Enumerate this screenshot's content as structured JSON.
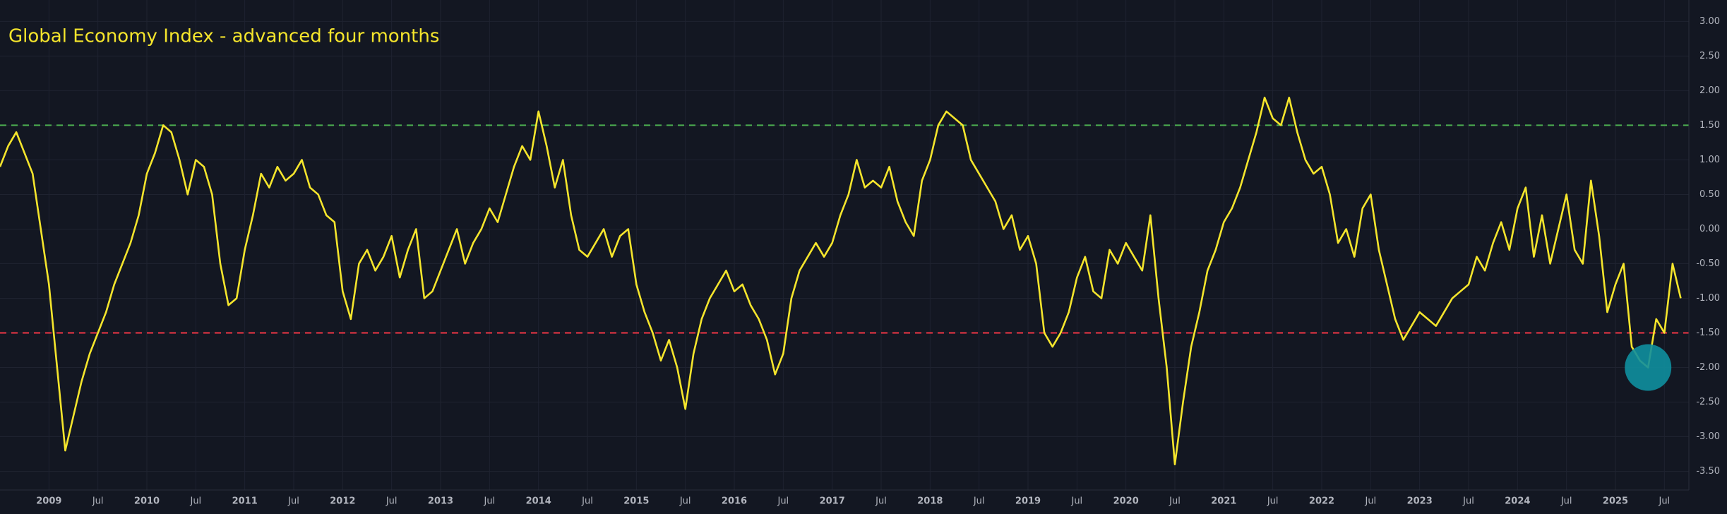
{
  "chart_data": {
    "type": "line",
    "title": "Global Economy Index - advanced four months",
    "color": "#f5e52c",
    "x": [
      "2008-07",
      "2008-08",
      "2008-09",
      "2008-10",
      "2008-11",
      "2008-12",
      "2009-01",
      "2009-02",
      "2009-03",
      "2009-04",
      "2009-05",
      "2009-06",
      "2009-07",
      "2009-08",
      "2009-09",
      "2009-10",
      "2009-11",
      "2009-12",
      "2010-01",
      "2010-02",
      "2010-03",
      "2010-04",
      "2010-05",
      "2010-06",
      "2010-07",
      "2010-08",
      "2010-09",
      "2010-10",
      "2010-11",
      "2010-12",
      "2011-01",
      "2011-02",
      "2011-03",
      "2011-04",
      "2011-05",
      "2011-06",
      "2011-07",
      "2011-08",
      "2011-09",
      "2011-10",
      "2011-11",
      "2011-12",
      "2012-01",
      "2012-02",
      "2012-03",
      "2012-04",
      "2012-05",
      "2012-06",
      "2012-07",
      "2012-08",
      "2012-09",
      "2012-10",
      "2012-11",
      "2012-12",
      "2013-01",
      "2013-02",
      "2013-03",
      "2013-04",
      "2013-05",
      "2013-06",
      "2013-07",
      "2013-08",
      "2013-09",
      "2013-10",
      "2013-11",
      "2013-12",
      "2014-01",
      "2014-02",
      "2014-03",
      "2014-04",
      "2014-05",
      "2014-06",
      "2014-07",
      "2014-08",
      "2014-09",
      "2014-10",
      "2014-11",
      "2014-12",
      "2015-01",
      "2015-02",
      "2015-03",
      "2015-04",
      "2015-05",
      "2015-06",
      "2015-07",
      "2015-08",
      "2015-09",
      "2015-10",
      "2015-11",
      "2015-12",
      "2016-01",
      "2016-02",
      "2016-03",
      "2016-04",
      "2016-05",
      "2016-06",
      "2016-07",
      "2016-08",
      "2016-09",
      "2016-10",
      "2016-11",
      "2016-12",
      "2017-01",
      "2017-02",
      "2017-03",
      "2017-04",
      "2017-05",
      "2017-06",
      "2017-07",
      "2017-08",
      "2017-09",
      "2017-10",
      "2017-11",
      "2017-12",
      "2018-01",
      "2018-02",
      "2018-03",
      "2018-04",
      "2018-05",
      "2018-06",
      "2018-07",
      "2018-08",
      "2018-09",
      "2018-10",
      "2018-11",
      "2018-12",
      "2019-01",
      "2019-02",
      "2019-03",
      "2019-04",
      "2019-05",
      "2019-06",
      "2019-07",
      "2019-08",
      "2019-09",
      "2019-10",
      "2019-11",
      "2019-12",
      "2020-01",
      "2020-02",
      "2020-03",
      "2020-04",
      "2020-05",
      "2020-06",
      "2020-07",
      "2020-08",
      "2020-09",
      "2020-10",
      "2020-11",
      "2020-12",
      "2021-01",
      "2021-02",
      "2021-03",
      "2021-04",
      "2021-05",
      "2021-06",
      "2021-07",
      "2021-08",
      "2021-09",
      "2021-10",
      "2021-11",
      "2021-12",
      "2022-01",
      "2022-02",
      "2022-03",
      "2022-04",
      "2022-05",
      "2022-06",
      "2022-07",
      "2022-08",
      "2022-09",
      "2022-10",
      "2022-11",
      "2022-12",
      "2023-01",
      "2023-02",
      "2023-03",
      "2023-04",
      "2023-05",
      "2023-06",
      "2023-07",
      "2023-08",
      "2023-09",
      "2023-10",
      "2023-11",
      "2023-12",
      "2024-01",
      "2024-02",
      "2024-03",
      "2024-04",
      "2024-05",
      "2024-06",
      "2024-07",
      "2024-08",
      "2024-09",
      "2024-10",
      "2024-11",
      "2024-12",
      "2025-01",
      "2025-02",
      "2025-03",
      "2025-04",
      "2025-05",
      "2025-06",
      "2025-07",
      "2025-08",
      "2025-09"
    ],
    "values": [
      0.9,
      1.2,
      1.4,
      1.1,
      0.8,
      0,
      -0.8,
      -2.0,
      -3.2,
      -2.7,
      -2.2,
      -1.8,
      -1.5,
      -1.2,
      -0.8,
      -0.5,
      -0.2,
      0.2,
      0.8,
      1.1,
      1.5,
      1.4,
      1.0,
      0.5,
      1.0,
      0.9,
      0.5,
      -0.5,
      -1.1,
      -1.0,
      -0.3,
      0.2,
      0.8,
      0.6,
      0.9,
      0.7,
      0.8,
      1.0,
      0.6,
      0.5,
      0.2,
      0.1,
      -0.9,
      -1.3,
      -0.5,
      -0.3,
      -0.6,
      -0.4,
      -0.1,
      -0.7,
      -0.3,
      0,
      -1.0,
      -0.9,
      -0.6,
      -0.3,
      0,
      -0.5,
      -0.2,
      0,
      0.3,
      0.1,
      0.5,
      0.9,
      1.2,
      1.0,
      1.7,
      1.2,
      0.6,
      1.0,
      0.2,
      -0.3,
      -0.4,
      -0.2,
      0,
      -0.4,
      -0.1,
      0,
      -0.8,
      -1.2,
      -1.5,
      -1.9,
      -1.6,
      -2.0,
      -2.6,
      -1.8,
      -1.3,
      -1.0,
      -0.8,
      -0.6,
      -0.9,
      -0.8,
      -1.1,
      -1.3,
      -1.6,
      -2.1,
      -1.8,
      -1.0,
      -0.6,
      -0.4,
      -0.2,
      -0.4,
      -0.2,
      0.2,
      0.5,
      1.0,
      0.6,
      0.7,
      0.6,
      0.9,
      0.4,
      0.1,
      -0.1,
      0.7,
      1.0,
      1.5,
      1.7,
      1.6,
      1.5,
      1.0,
      0.8,
      0.6,
      0.4,
      0,
      0.2,
      -0.3,
      -0.1,
      -0.5,
      -1.5,
      -1.7,
      -1.5,
      -1.2,
      -0.7,
      -0.4,
      -0.9,
      -1.0,
      -0.3,
      -0.5,
      -0.2,
      -0.4,
      -0.6,
      0.2,
      -1.0,
      -2.0,
      -3.4,
      -2.5,
      -1.7,
      -1.2,
      -0.6,
      -0.3,
      0.1,
      0.3,
      0.6,
      1.0,
      1.4,
      1.9,
      1.6,
      1.5,
      1.9,
      1.4,
      1.0,
      0.8,
      0.9,
      0.5,
      -0.2,
      0,
      -0.4,
      0.3,
      0.5,
      -0.3,
      -0.8,
      -1.3,
      -1.6,
      -1.4,
      -1.2,
      -1.3,
      -1.4,
      -1.2,
      -1.0,
      -0.9,
      -0.8,
      -0.4,
      -0.6,
      -0.2,
      0.1,
      -0.3,
      0.3,
      0.6,
      -0.4,
      0.2,
      -0.5,
      0,
      0.5,
      -0.3,
      -0.5,
      0.7,
      -0.1,
      -1.2,
      -0.8,
      -0.5,
      -1.7,
      -1.9,
      -2.0,
      -1.3,
      -1.5,
      -0.5,
      -1.0
    ],
    "xlim": [
      "2008-07",
      "2025-10"
    ],
    "xticks": [
      {
        "value": "2009-01",
        "label": "2009"
      },
      {
        "value": "2009-07",
        "label": "Jul"
      },
      {
        "value": "2010-01",
        "label": "2010"
      },
      {
        "value": "2010-07",
        "label": "Jul"
      },
      {
        "value": "2011-01",
        "label": "2011"
      },
      {
        "value": "2011-07",
        "label": "Jul"
      },
      {
        "value": "2012-01",
        "label": "2012"
      },
      {
        "value": "2012-07",
        "label": "Jul"
      },
      {
        "value": "2013-01",
        "label": "2013"
      },
      {
        "value": "2013-07",
        "label": "Jul"
      },
      {
        "value": "2014-01",
        "label": "2014"
      },
      {
        "value": "2014-07",
        "label": "Jul"
      },
      {
        "value": "2015-01",
        "label": "2015"
      },
      {
        "value": "2015-07",
        "label": "Jul"
      },
      {
        "value": "2016-01",
        "label": "2016"
      },
      {
        "value": "2016-07",
        "label": "Jul"
      },
      {
        "value": "2017-01",
        "label": "2017"
      },
      {
        "value": "2017-07",
        "label": "Jul"
      },
      {
        "value": "2018-01",
        "label": "2018"
      },
      {
        "value": "2018-07",
        "label": "Jul"
      },
      {
        "value": "2019-01",
        "label": "2019"
      },
      {
        "value": "2019-07",
        "label": "Jul"
      },
      {
        "value": "2020-01",
        "label": "2020"
      },
      {
        "value": "2020-07",
        "label": "Jul"
      },
      {
        "value": "2021-01",
        "label": "2021"
      },
      {
        "value": "2021-07",
        "label": "Jul"
      },
      {
        "value": "2022-01",
        "label": "2022"
      },
      {
        "value": "2022-07",
        "label": "Jul"
      },
      {
        "value": "2023-01",
        "label": "2023"
      },
      {
        "value": "2023-07",
        "label": "Jul"
      },
      {
        "value": "2024-01",
        "label": "2024"
      },
      {
        "value": "2024-07",
        "label": "Jul"
      },
      {
        "value": "2025-01",
        "label": "2025"
      },
      {
        "value": "2025-07",
        "label": "Jul"
      }
    ],
    "ylim": [
      -3.77,
      3.31
    ],
    "yticks": [
      {
        "value": 3,
        "label": "3.00"
      },
      {
        "value": 2.5,
        "label": "2.50"
      },
      {
        "value": 2,
        "label": "2.00"
      },
      {
        "value": 1.5,
        "label": "1.50"
      },
      {
        "value": 1,
        "label": "1.00"
      },
      {
        "value": 0.5,
        "label": "0.50"
      },
      {
        "value": 0,
        "label": "0.00"
      },
      {
        "value": -0.5,
        "label": "-0.50"
      },
      {
        "value": -1,
        "label": "-1.00"
      },
      {
        "value": -1.5,
        "label": "-1.50"
      },
      {
        "value": -2,
        "label": "-2.00"
      },
      {
        "value": -2.5,
        "label": "-2.50"
      },
      {
        "value": -3,
        "label": "-3.00"
      },
      {
        "value": -3.5,
        "label": "-3.50"
      }
    ],
    "grid": true,
    "hlines": [
      {
        "value": 1.5,
        "color": "#4caf50"
      },
      {
        "value": -1.5,
        "color": "#f23645"
      }
    ],
    "highlight": {
      "x": "2025-05",
      "y": -2.0,
      "color": "#0f8f9e"
    }
  }
}
